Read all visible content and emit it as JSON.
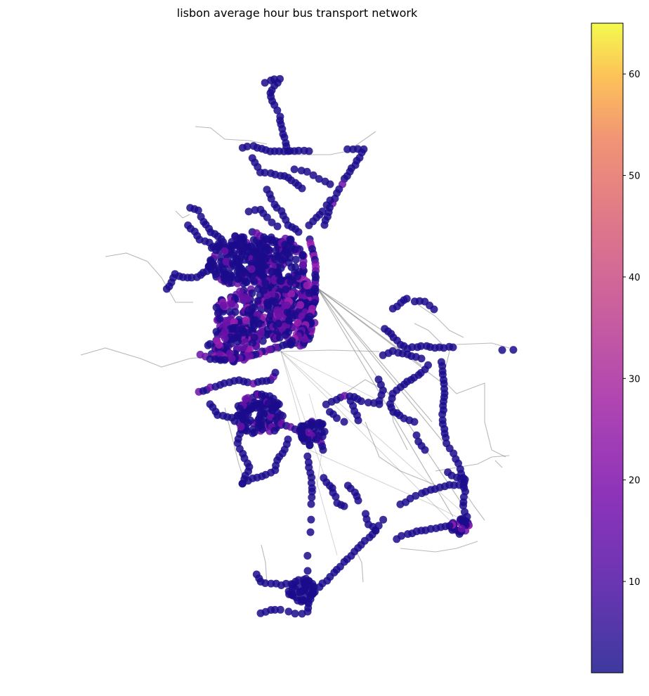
{
  "title": "lisbon average hour bus transport network",
  "colorbar": {
    "colormap": "plasma",
    "range": [
      1,
      65
    ],
    "ticks": [
      {
        "value": 10,
        "label": "10"
      },
      {
        "value": 20,
        "label": "20"
      },
      {
        "value": 30,
        "label": "30"
      },
      {
        "value": 40,
        "label": "40"
      },
      {
        "value": 50,
        "label": "50"
      },
      {
        "value": 60,
        "label": "60"
      }
    ]
  },
  "colors": {
    "edge": "#808080",
    "node_dark": "#1b0c8c",
    "node_mid": "#6a12a8",
    "node_high": "#9b1fb0"
  }
}
